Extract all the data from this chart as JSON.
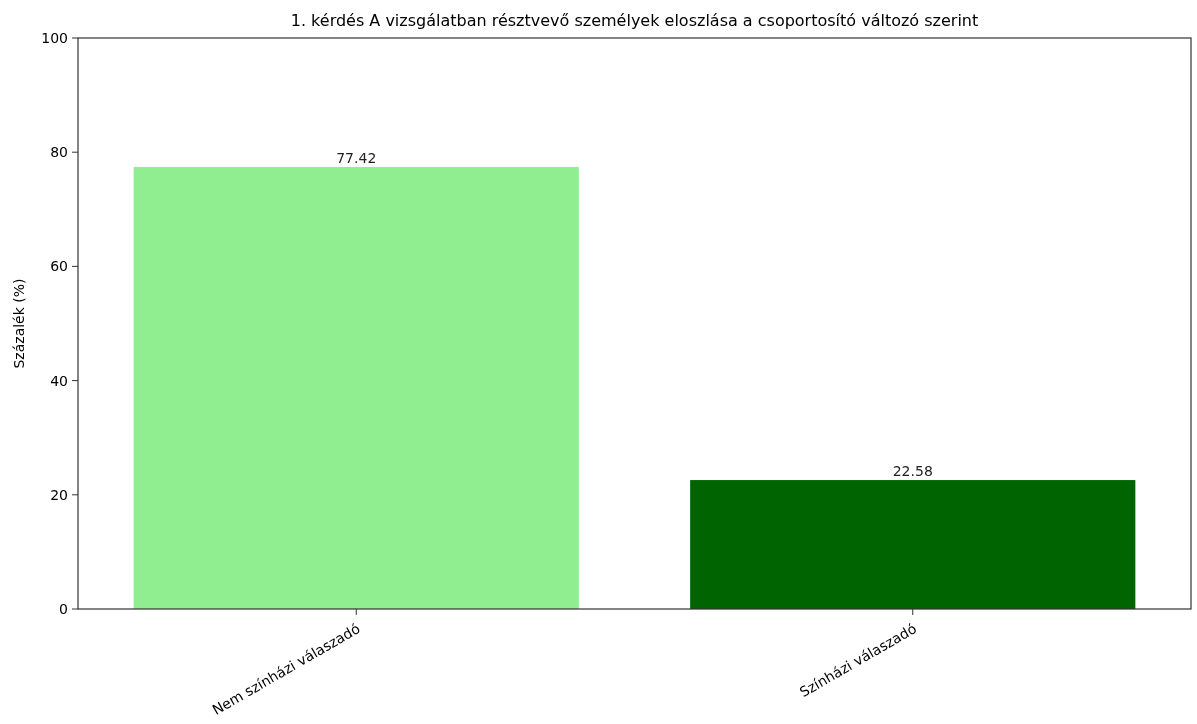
{
  "chart_data": {
    "type": "bar",
    "title": "1. kérdés A vizsgálatban résztvevő személyek eloszlása a csoportosító változó szerint",
    "ylabel": "Százalék (%)",
    "categories": [
      "Nem színházi válaszadó",
      "Színházi válaszadó"
    ],
    "values": [
      77.42,
      22.58
    ],
    "colors": [
      "#90ee90",
      "#006400"
    ],
    "ylim": [
      0,
      100
    ],
    "yticks": [
      0,
      20,
      40,
      60,
      80,
      100
    ],
    "data_labels": true,
    "grid": false
  }
}
